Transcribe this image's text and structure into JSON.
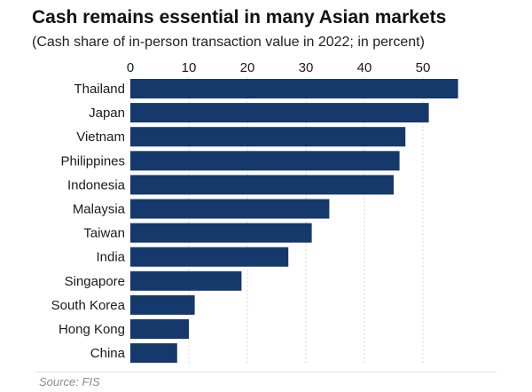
{
  "title": "Cash remains essential in many Asian markets",
  "subtitle": "(Cash share of in-person transaction value in 2022; in percent)",
  "source": "Source: FIS",
  "colors": {
    "bar": "#16396b",
    "grid": "#c9c9c9",
    "text": "#1a1a1a"
  },
  "chart_data": {
    "type": "bar",
    "orientation": "horizontal",
    "categories": [
      "Thailand",
      "Japan",
      "Vietnam",
      "Philippines",
      "Indonesia",
      "Malaysia",
      "Taiwan",
      "India",
      "Singapore",
      "South Korea",
      "Hong Kong",
      "China"
    ],
    "values": [
      56,
      51,
      47,
      46,
      45,
      34,
      31,
      27,
      19,
      11,
      10,
      8
    ],
    "xlim": [
      0,
      56
    ],
    "xticks": [
      0,
      10,
      20,
      30,
      40,
      50
    ],
    "xtick_position": "top",
    "grid": "vertical dotted",
    "legend": "none"
  }
}
